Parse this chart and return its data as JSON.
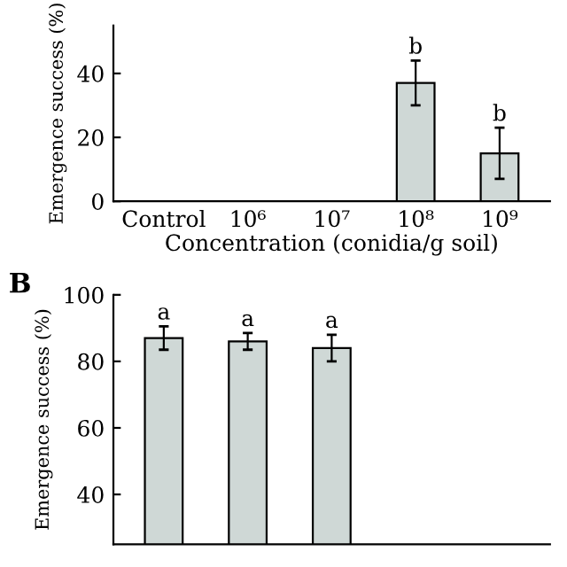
{
  "chart_data": [
    {
      "type": "bar",
      "categories": [
        "Control",
        "10⁶",
        "10⁷",
        "10⁸",
        "10⁹"
      ],
      "xlabel": "Concentration (conidia/g soil)",
      "ylabel": "Emergence success (%)",
      "values": [
        null,
        null,
        null,
        37,
        15
      ],
      "errors": [
        null,
        null,
        null,
        7,
        8
      ],
      "color": "#cfd8d6",
      "ylim": [
        0,
        55
      ],
      "yticks": [
        0,
        20,
        40
      ],
      "grid": false,
      "annotations": [
        "b",
        "b"
      ]
    },
    {
      "type": "bar",
      "title": "B",
      "categories": [
        null,
        null,
        null,
        null,
        null
      ],
      "ylabel": "Emergence success (%)",
      "values": [
        87,
        86,
        84,
        null,
        null
      ],
      "errors": [
        3.5,
        2.5,
        4,
        null,
        null
      ],
      "color": "#cfd8d6",
      "ylim": [
        25,
        100
      ],
      "yticks": [
        40,
        60,
        80,
        100
      ],
      "tick_labels": "y",
      "grid": false,
      "annotations": [
        "a",
        "a",
        "a"
      ]
    }
  ]
}
